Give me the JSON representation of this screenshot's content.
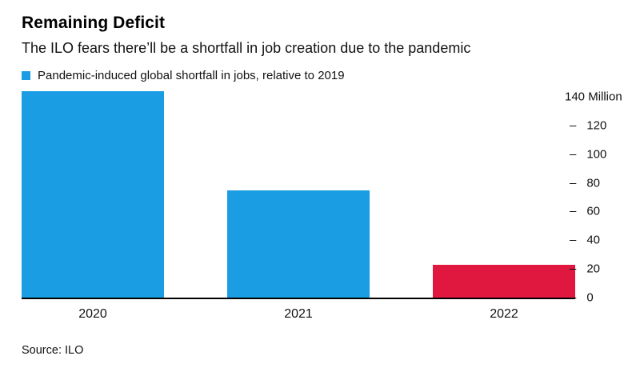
{
  "header": {
    "title": "Remaining Deficit",
    "subtitle": "The ILO fears there’ll be a shortfall in job creation due to the pandemic"
  },
  "legend": {
    "label": "Pandemic-induced global shortfall in jobs, relative to 2019",
    "color": "#1a9de3"
  },
  "chart_data": {
    "type": "bar",
    "categories": [
      "2020",
      "2021",
      "2022"
    ],
    "values": [
      144,
      75,
      23
    ],
    "bar_colors": [
      "#1a9de3",
      "#1a9de3",
      "#e0173f"
    ],
    "title": "Remaining Deficit",
    "subtitle": "The ILO fears there’ll be a shortfall in job creation due to the pandemic",
    "legend_label": "Pandemic-induced global shortfall in jobs, relative to 2019",
    "ylabel": "Million",
    "ymax": 145,
    "yticks": [
      0,
      20,
      40,
      60,
      80,
      100,
      120
    ],
    "ytop_value": 140,
    "ytop_label": "140 Million",
    "tick_mark": "–",
    "grid": false,
    "legend_position": "top-left",
    "axis_line_color": "#000000"
  },
  "footer": {
    "source": "Source: ILO"
  }
}
